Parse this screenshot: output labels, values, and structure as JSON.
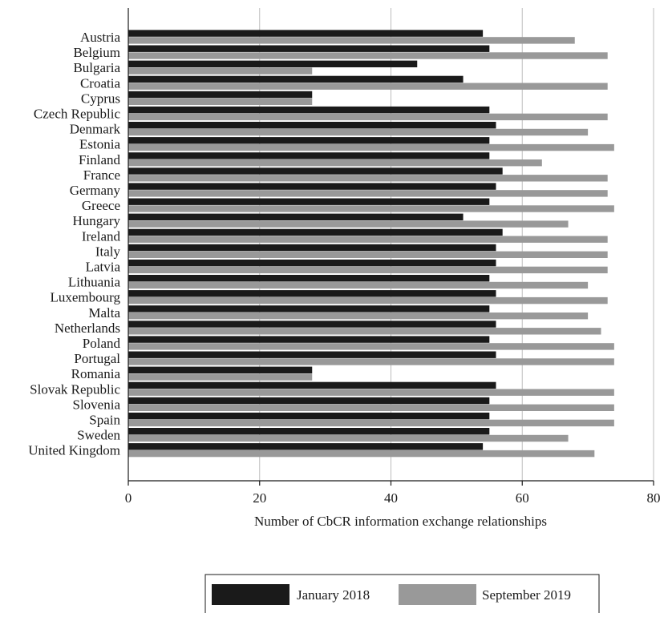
{
  "chart_data": {
    "type": "bar",
    "orientation": "horizontal",
    "categories": [
      "Austria",
      "Belgium",
      "Bulgaria",
      "Croatia",
      "Cyprus",
      "Czech  Republic",
      "Denmark",
      "Estonia",
      "Finland",
      "France",
      "Germany",
      "Greece",
      "Hungary",
      "Ireland",
      "Italy",
      "Latvia",
      "Lithuania",
      "Luxembourg",
      "Malta",
      "Netherlands",
      "Poland",
      "Portugal",
      "Romania",
      "Slovak Republic",
      "Slovenia",
      "Spain",
      "Sweden",
      "United Kingdom"
    ],
    "series": [
      {
        "name": "January 2018",
        "color": "#1a1a1a",
        "values": [
          54,
          55,
          44,
          51,
          28,
          55,
          56,
          55,
          55,
          57,
          56,
          55,
          51,
          57,
          56,
          56,
          55,
          56,
          55,
          56,
          55,
          56,
          28,
          56,
          55,
          55,
          55,
          54
        ]
      },
      {
        "name": "September 2019",
        "color": "#999999",
        "values": [
          68,
          73,
          28,
          73,
          28,
          73,
          70,
          74,
          63,
          73,
          73,
          74,
          67,
          73,
          73,
          73,
          70,
          73,
          70,
          72,
          74,
          74,
          28,
          74,
          74,
          74,
          67,
          71
        ]
      }
    ],
    "xlabel": "Number of CbCR information exchange relationships",
    "ylabel": "",
    "xlim": [
      0,
      80
    ],
    "xticks": [
      "0",
      "20",
      "40",
      "60",
      "80"
    ],
    "grid": "vertical",
    "legend": "bottom"
  }
}
